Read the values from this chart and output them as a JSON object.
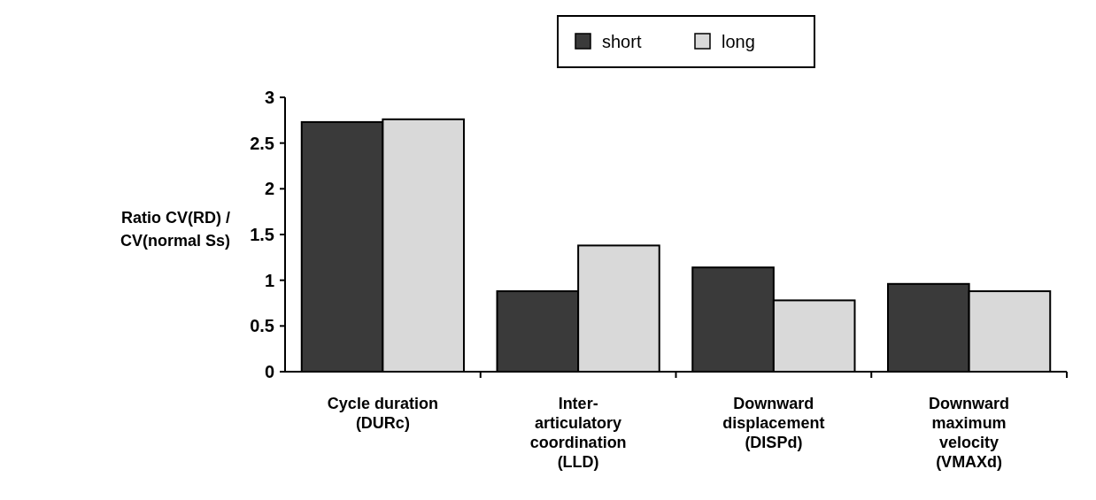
{
  "chart_data": {
    "type": "bar",
    "ylabel": "Ratio CV(RD) /\nCV(normal Ss)",
    "categories": [
      "Cycle duration\n(DURc)",
      "Inter-\narticulatory\ncoordination\n(LLD)",
      "Downward\ndisplacement\n(DISPd)",
      "Downward\nmaximum\nvelocity\n(VMAXd)"
    ],
    "series": [
      {
        "name": "short",
        "color": "#3a3a3a",
        "values": [
          2.73,
          0.88,
          1.14,
          0.96
        ]
      },
      {
        "name": "long",
        "color": "#d9d9d9",
        "values": [
          2.76,
          1.38,
          0.78,
          0.88
        ]
      }
    ],
    "ylim": [
      0,
      3
    ],
    "yticks": [
      0,
      0.5,
      1,
      1.5,
      2,
      2.5,
      3
    ],
    "grid": false,
    "legend": "top"
  }
}
